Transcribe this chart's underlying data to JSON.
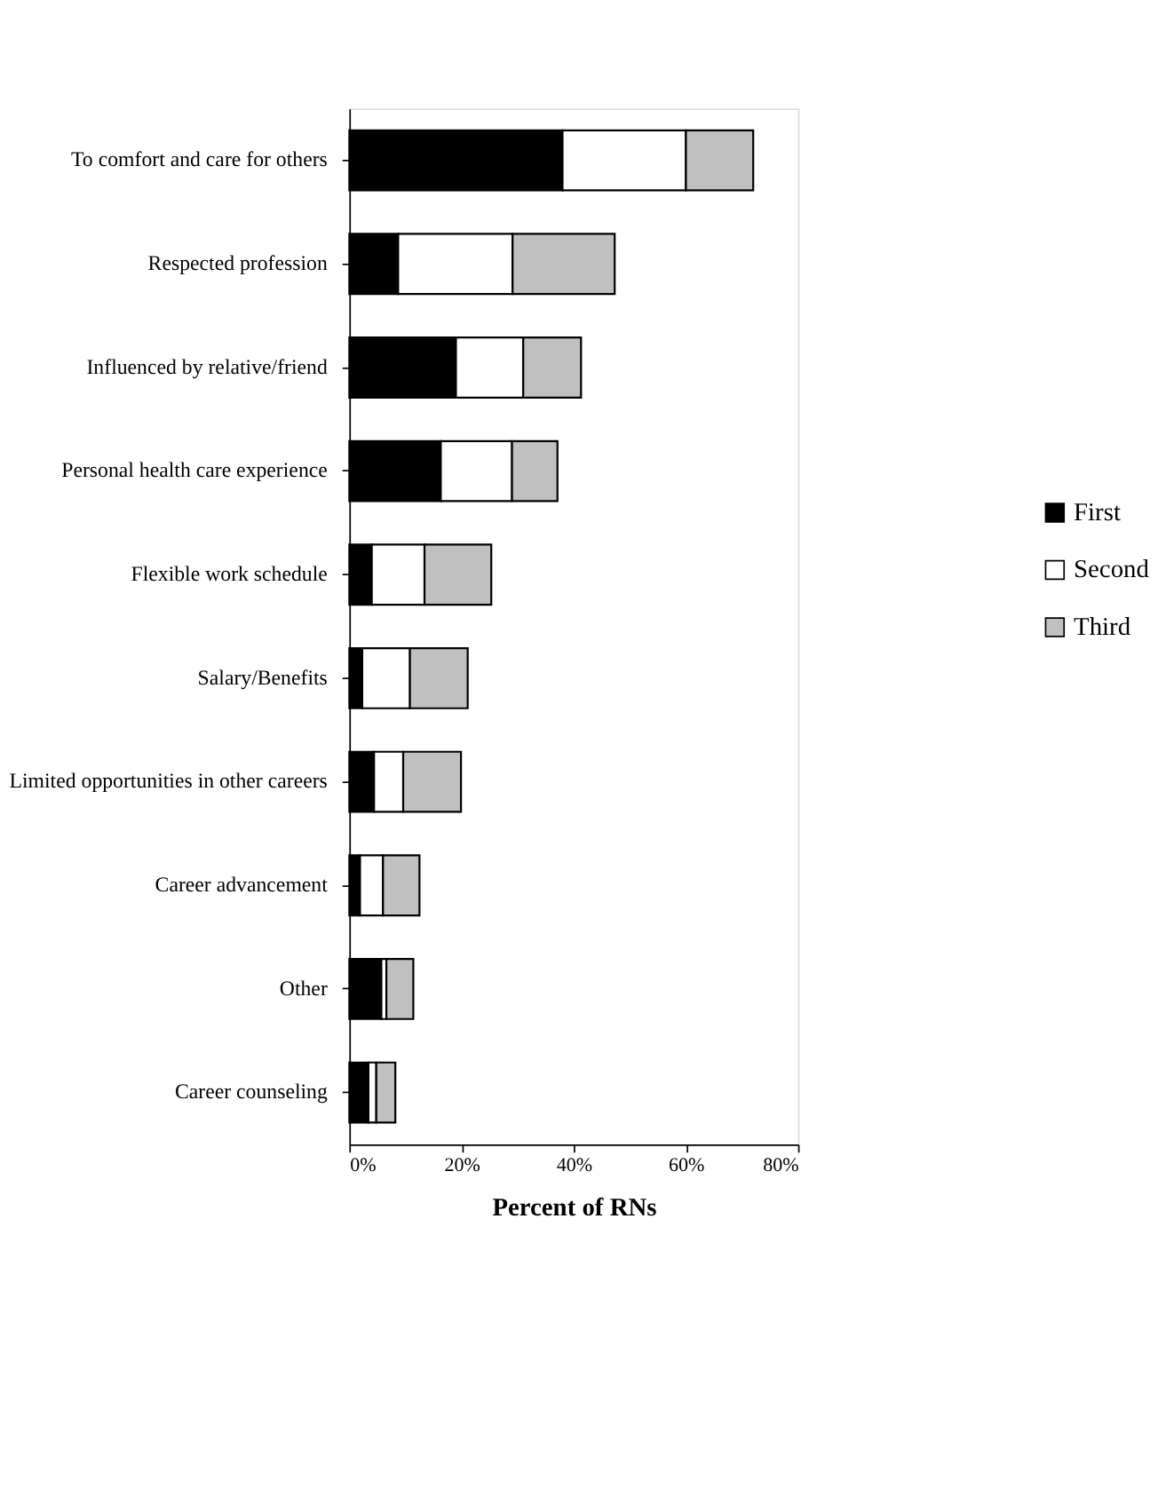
{
  "chart_data": {
    "type": "bar",
    "orientation": "horizontal",
    "stacked": true,
    "xlabel": "Percent of RNs",
    "categories": [
      "To comfort and care for others",
      "Respected profession",
      "Influenced by relative/friend",
      "Personal health care experience",
      "Flexible work schedule",
      "Salary/Benefits",
      "Limited opportunities in other careers",
      "Career advancement",
      "Other",
      "Career counseling"
    ],
    "series": [
      {
        "name": "First",
        "color": "#000000",
        "values": [
          38,
          8.7,
          19,
          16.3,
          4,
          2.3,
          4.4,
          1.9,
          5.7,
          3.4
        ]
      },
      {
        "name": "Second",
        "color": "#ffffff",
        "values": [
          22,
          20.4,
          12,
          12.7,
          9.4,
          8.5,
          5.2,
          4.1,
          0.9,
          1.4
        ]
      },
      {
        "name": "Third",
        "color": "#c0c0c0",
        "values": [
          12,
          18.2,
          10.3,
          8.1,
          11.9,
          10.3,
          10.3,
          6.5,
          4.8,
          3.4
        ]
      }
    ],
    "xlim": [
      0,
      80
    ],
    "xticks": [
      {
        "value": 0,
        "label": "0%"
      },
      {
        "value": 20,
        "label": "20%"
      },
      {
        "value": 40,
        "label": "40%"
      },
      {
        "value": 60,
        "label": "60%"
      },
      {
        "value": 80,
        "label": "80%"
      }
    ],
    "grid": false,
    "legend": "right"
  }
}
